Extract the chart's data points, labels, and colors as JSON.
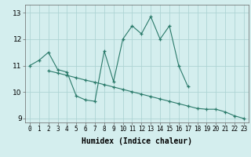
{
  "line1_x": [
    0,
    1,
    2,
    3,
    4,
    5,
    6,
    7,
    8,
    9,
    10,
    11,
    12,
    13,
    14,
    15,
    16,
    17
  ],
  "line1_y": [
    11.0,
    11.2,
    11.5,
    10.85,
    10.75,
    9.85,
    9.7,
    9.65,
    11.55,
    10.4,
    12.0,
    12.5,
    12.2,
    12.85,
    12.0,
    12.5,
    11.0,
    10.2
  ],
  "line2_x": [
    2,
    3,
    4,
    5,
    6,
    7,
    8,
    9,
    10,
    11,
    12,
    13,
    14,
    15,
    16,
    17,
    18,
    19,
    20,
    21,
    22,
    23
  ],
  "line2_y": [
    10.8,
    10.72,
    10.63,
    10.54,
    10.45,
    10.37,
    10.28,
    10.19,
    10.1,
    10.01,
    9.92,
    9.83,
    9.74,
    9.65,
    9.56,
    9.47,
    9.38,
    9.35,
    9.35,
    9.25,
    9.1,
    9.0
  ],
  "line_color": "#2a7a6a",
  "bg_color": "#d4eeee",
  "grid_color": "#aed4d4",
  "xlabel": "Humidex (Indice chaleur)",
  "ylim": [
    8.85,
    13.3
  ],
  "xlim": [
    -0.5,
    23.5
  ],
  "yticks": [
    9,
    10,
    11,
    12,
    13
  ],
  "xticks": [
    0,
    1,
    2,
    3,
    4,
    5,
    6,
    7,
    8,
    9,
    10,
    11,
    12,
    13,
    14,
    15,
    16,
    17,
    18,
    19,
    20,
    21,
    22,
    23
  ],
  "tick_fontsize": 5.5,
  "label_fontsize": 7
}
